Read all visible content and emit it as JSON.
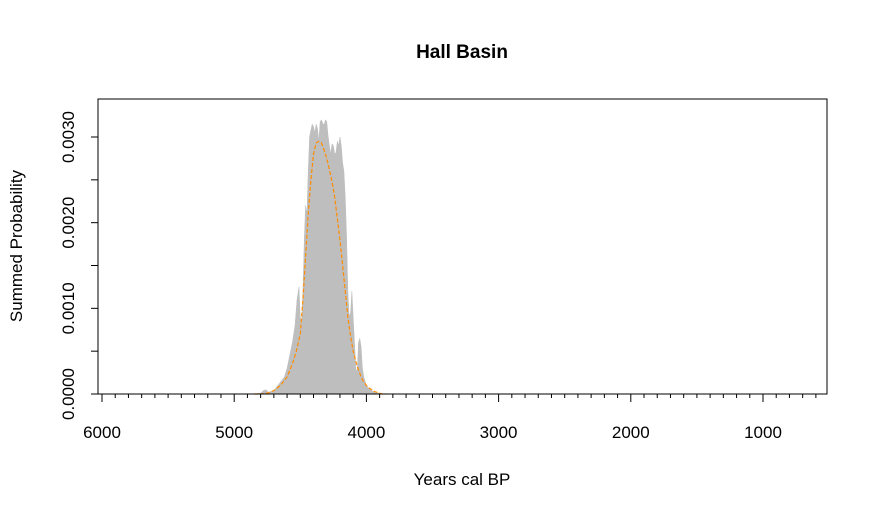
{
  "chart_data": {
    "type": "area",
    "title": "Hall Basin",
    "xlabel": "Years cal BP",
    "ylabel": "Summed Probability",
    "x_reversed": true,
    "xlim": [
      6000,
      500
    ],
    "ylim": [
      0,
      0.0035
    ],
    "x_ticks_major": [
      6000,
      5000,
      4000,
      3000,
      2000,
      1000
    ],
    "x_tick_labels": [
      "6000",
      "5000",
      "4000",
      "3000",
      "2000",
      "1000"
    ],
    "x_minor_step": 100,
    "y_ticks": [
      0,
      0.0005,
      0.001,
      0.0015,
      0.002,
      0.0025,
      0.003
    ],
    "y_tick_labels": [
      "0.0000",
      "",
      "0.0010",
      "",
      "0.0020",
      "",
      "0.0030"
    ],
    "fill_color": "#bebebe",
    "line_color": "#ff8c00",
    "series": [
      {
        "style": "filled-area",
        "x": [
          4850,
          4800,
          4780,
          4760,
          4740,
          4720,
          4700,
          4680,
          4660,
          4640,
          4620,
          4600,
          4580,
          4560,
          4540,
          4525,
          4510,
          4500,
          4490,
          4480,
          4470,
          4460,
          4450,
          4440,
          4430,
          4420,
          4410,
          4400,
          4390,
          4380,
          4370,
          4360,
          4350,
          4340,
          4330,
          4320,
          4310,
          4300,
          4290,
          4280,
          4270,
          4260,
          4250,
          4240,
          4230,
          4220,
          4210,
          4200,
          4190,
          4180,
          4170,
          4160,
          4150,
          4140,
          4130,
          4120,
          4110,
          4100,
          4090,
          4080,
          4070,
          4060,
          4050,
          4040,
          4030,
          4020,
          4010,
          4000,
          3990,
          3980,
          3960,
          3940,
          3920,
          3900,
          3880,
          3850
        ],
        "y": [
          0,
          1e-05,
          4e-05,
          5e-05,
          2e-05,
          3e-05,
          4e-05,
          8e-05,
          0.00012,
          0.00016,
          0.0002,
          0.0003,
          0.00045,
          0.0006,
          0.0008,
          0.0011,
          0.00125,
          0.0009,
          0.0008,
          0.0012,
          0.0018,
          0.0022,
          0.0021,
          0.0026,
          0.003,
          0.00308,
          0.00315,
          0.00312,
          0.00305,
          0.00315,
          0.0031,
          0.00295,
          0.00318,
          0.0032,
          0.00316,
          0.00314,
          0.0032,
          0.00318,
          0.00302,
          0.0029,
          0.0028,
          0.00292,
          0.0029,
          0.0028,
          0.00282,
          0.00295,
          0.0029,
          0.003,
          0.0029,
          0.0027,
          0.0026,
          0.0023,
          0.00185,
          0.0012,
          0.0009,
          0.00095,
          0.0012,
          0.0009,
          0.0006,
          0.0003,
          0.00025,
          0.0006,
          0.00065,
          0.00055,
          0.0003,
          0.0002,
          0.00015,
          0.0001,
          8e-05,
          6e-05,
          4e-05,
          2e-05,
          1e-05,
          1e-05,
          0,
          0
        ]
      },
      {
        "style": "dashed-line",
        "x": [
          4850,
          4800,
          4750,
          4700,
          4650,
          4600,
          4560,
          4530,
          4500,
          4480,
          4460,
          4440,
          4420,
          4400,
          4380,
          4360,
          4340,
          4320,
          4300,
          4280,
          4260,
          4240,
          4220,
          4200,
          4180,
          4160,
          4140,
          4120,
          4100,
          4080,
          4060,
          4040,
          4020,
          4000,
          3980,
          3960,
          3940,
          3920,
          3900,
          3880,
          3850
        ],
        "y": [
          0,
          0,
          1e-05,
          4e-05,
          0.0001,
          0.0002,
          0.00035,
          0.0005,
          0.0007,
          0.0011,
          0.0016,
          0.0021,
          0.0025,
          0.0028,
          0.00293,
          0.00295,
          0.00293,
          0.00285,
          0.00275,
          0.00262,
          0.00248,
          0.0023,
          0.00205,
          0.0018,
          0.0015,
          0.0012,
          0.0009,
          0.00068,
          0.0005,
          0.00038,
          0.00028,
          0.0002,
          0.00014,
          0.0001,
          7e-05,
          5e-05,
          3e-05,
          2e-05,
          1e-05,
          0,
          0
        ]
      }
    ]
  }
}
